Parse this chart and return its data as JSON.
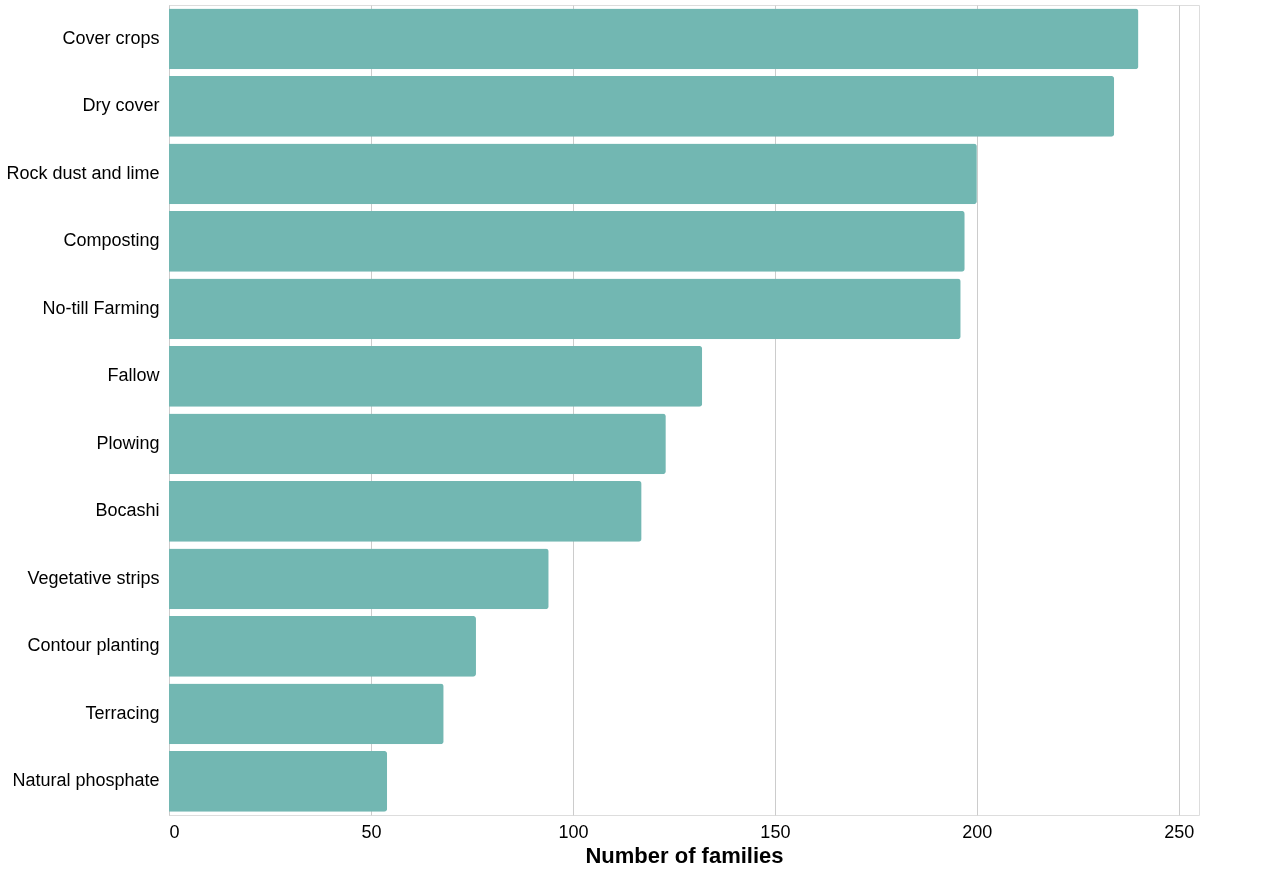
{
  "chart_data": {
    "type": "bar",
    "orientation": "horizontal",
    "xlabel": "Number of families",
    "categories": [
      "Cover crops",
      "Dry cover",
      "Rock dust and lime",
      "Composting",
      "No-till Farming",
      "Fallow",
      "Plowing",
      "Bocashi",
      "Vegetative strips",
      "Contour planting",
      "Terracing",
      "Natural phosphate"
    ],
    "values": [
      240,
      234,
      200,
      197,
      196,
      132,
      123,
      117,
      94,
      76,
      68,
      54
    ],
    "color": "#72b7b2",
    "xlim": [
      0,
      255
    ],
    "xticks": [
      0,
      50,
      100,
      150,
      200,
      250
    ],
    "grid": "x"
  }
}
